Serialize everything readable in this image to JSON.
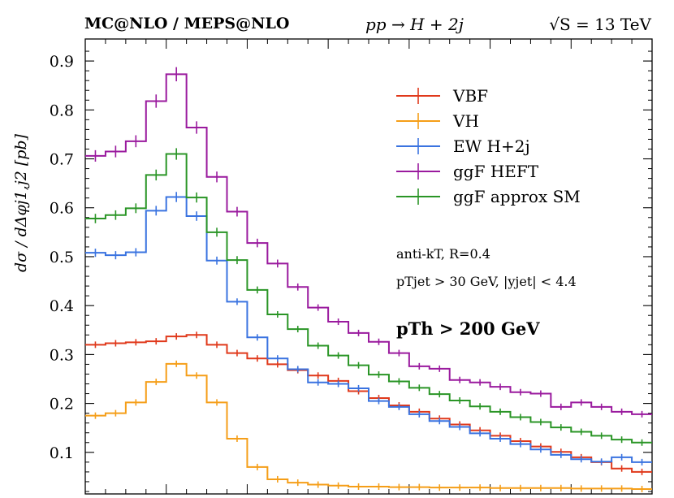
{
  "header": {
    "left": "MC@NLO / MEPS@NLO",
    "process": "pp → H + 2j",
    "energy": "√S = 13 TeV"
  },
  "chart_data": {
    "type": "line",
    "ylabel": "dσ / dΔφj1,j2 [pb]",
    "xlabel": "",
    "ylim": [
      0.015,
      0.945
    ],
    "yticks": [
      "0.1",
      "0.2",
      "0.3",
      "0.4",
      "0.5",
      "0.6",
      "0.7",
      "0.8",
      "0.9"
    ],
    "ytick_values": [
      0.1,
      0.2,
      0.3,
      0.4,
      0.5,
      0.6,
      0.7,
      0.8,
      0.9
    ],
    "nbins": 28,
    "series": [
      {
        "name": "VBF",
        "color": "#e0391b",
        "values": [
          0.32,
          0.323,
          0.325,
          0.327,
          0.337,
          0.34,
          0.32,
          0.303,
          0.292,
          0.28,
          0.268,
          0.257,
          0.246,
          0.225,
          0.211,
          0.196,
          0.183,
          0.169,
          0.157,
          0.145,
          0.134,
          0.123,
          0.112,
          0.101,
          0.09,
          0.08,
          0.067,
          0.06
        ]
      },
      {
        "name": "VH",
        "color": "#f59e18",
        "values": [
          0.175,
          0.18,
          0.202,
          0.244,
          0.281,
          0.257,
          0.202,
          0.128,
          0.07,
          0.045,
          0.038,
          0.034,
          0.032,
          0.03,
          0.03,
          0.029,
          0.029,
          0.028,
          0.028,
          0.028,
          0.027,
          0.027,
          0.027,
          0.027,
          0.026,
          0.026,
          0.026,
          0.025
        ]
      },
      {
        "name": "EW H+2j",
        "color": "#3a73e0",
        "values": [
          0.508,
          0.503,
          0.509,
          0.594,
          0.622,
          0.583,
          0.492,
          0.408,
          0.335,
          0.292,
          0.27,
          0.243,
          0.24,
          0.231,
          0.205,
          0.193,
          0.178,
          0.164,
          0.152,
          0.139,
          0.128,
          0.117,
          0.106,
          0.095,
          0.086,
          0.081,
          0.09,
          0.08
        ]
      },
      {
        "name": "ggF HEFT",
        "color": "#9a1a9e",
        "values": [
          0.706,
          0.715,
          0.736,
          0.818,
          0.873,
          0.764,
          0.663,
          0.592,
          0.528,
          0.486,
          0.438,
          0.396,
          0.367,
          0.344,
          0.326,
          0.303,
          0.276,
          0.271,
          0.248,
          0.243,
          0.234,
          0.223,
          0.22,
          0.193,
          0.202,
          0.193,
          0.183,
          0.178
        ]
      },
      {
        "name": "ggF approx SM",
        "color": "#2a9526",
        "values": [
          0.578,
          0.585,
          0.599,
          0.667,
          0.71,
          0.621,
          0.55,
          0.493,
          0.432,
          0.382,
          0.352,
          0.318,
          0.298,
          0.278,
          0.259,
          0.245,
          0.232,
          0.219,
          0.206,
          0.194,
          0.183,
          0.172,
          0.162,
          0.151,
          0.142,
          0.134,
          0.126,
          0.12
        ]
      }
    ],
    "legend_position": "top-right",
    "grid": false
  },
  "annotations": {
    "jet_alg": "anti-kT, R=0.4",
    "jet_cuts": "pTjet > 30 GeV, |yjet| < 4.4",
    "higgs_cut": "pTh > 200 GeV"
  }
}
